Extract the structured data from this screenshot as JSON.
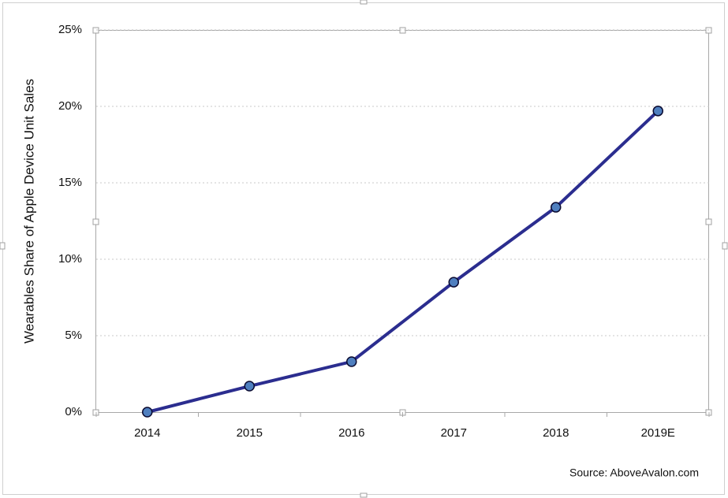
{
  "chart_data": {
    "type": "line",
    "y_label": "Wearables Share of Apple Device Unit Sales",
    "source": "Source: AboveAvalon.com",
    "categories": [
      "2014",
      "2015",
      "2016",
      "2017",
      "2018",
      "2019E"
    ],
    "values": [
      0,
      1.7,
      3.3,
      8.5,
      13.4,
      19.7
    ],
    "color": "#2b2d8f",
    "marker_color": "#4f7fbf",
    "ylim": [
      0,
      25
    ],
    "yticks": [
      {
        "value": 0,
        "label": "0%"
      },
      {
        "value": 5,
        "label": "5%"
      },
      {
        "value": 10,
        "label": "10%"
      },
      {
        "value": 15,
        "label": "15%"
      },
      {
        "value": 20,
        "label": "20%"
      },
      {
        "value": 25,
        "label": "25%"
      }
    ],
    "grid": true
  }
}
